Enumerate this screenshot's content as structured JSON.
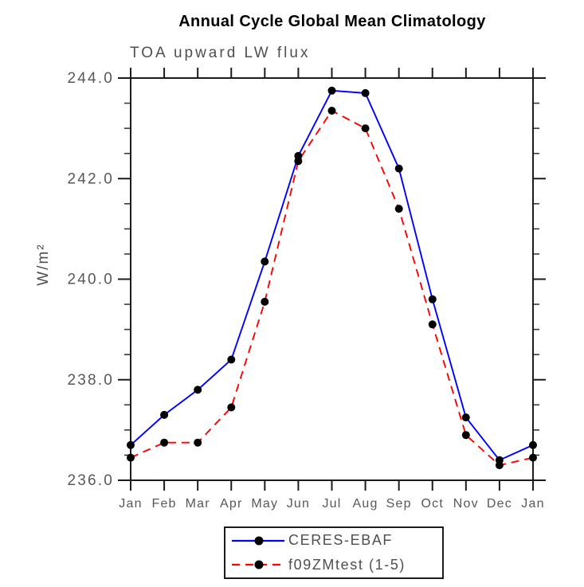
{
  "title": "Annual Cycle Global Mean Climatology",
  "chart_data": {
    "type": "line",
    "subtitle": "TOA upward LW flux",
    "ylabel": "W/m²",
    "xlabel": "",
    "categories": [
      "Jan",
      "Feb",
      "Mar",
      "Apr",
      "May",
      "Jun",
      "Jul",
      "Aug",
      "Sep",
      "Oct",
      "Nov",
      "Dec",
      "Jan"
    ],
    "ylim": [
      236.0,
      244.0
    ],
    "ytick_labels": [
      "236.0",
      "238.0",
      "240.0",
      "242.0",
      "244.0"
    ],
    "ytick_interval": 2.0,
    "yminor_interval": 0.5,
    "grid": false,
    "legend_position": "bottom-center",
    "marker_color": "#000000",
    "series": [
      {
        "name": "CERES-EBAF",
        "color": "#0000ff",
        "line_style": "solid",
        "marker": "filled-circle",
        "values": [
          236.7,
          237.3,
          237.8,
          238.4,
          240.35,
          242.45,
          243.75,
          243.7,
          242.2,
          239.6,
          237.25,
          236.4,
          236.7
        ]
      },
      {
        "name": "f09ZMtest (1-5)",
        "color": "#ff0000",
        "line_style": "dashed",
        "marker": "filled-circle",
        "values": [
          236.45,
          236.75,
          236.75,
          237.45,
          239.55,
          242.35,
          243.35,
          243.0,
          241.4,
          239.1,
          236.9,
          236.3,
          236.45
        ]
      }
    ]
  }
}
